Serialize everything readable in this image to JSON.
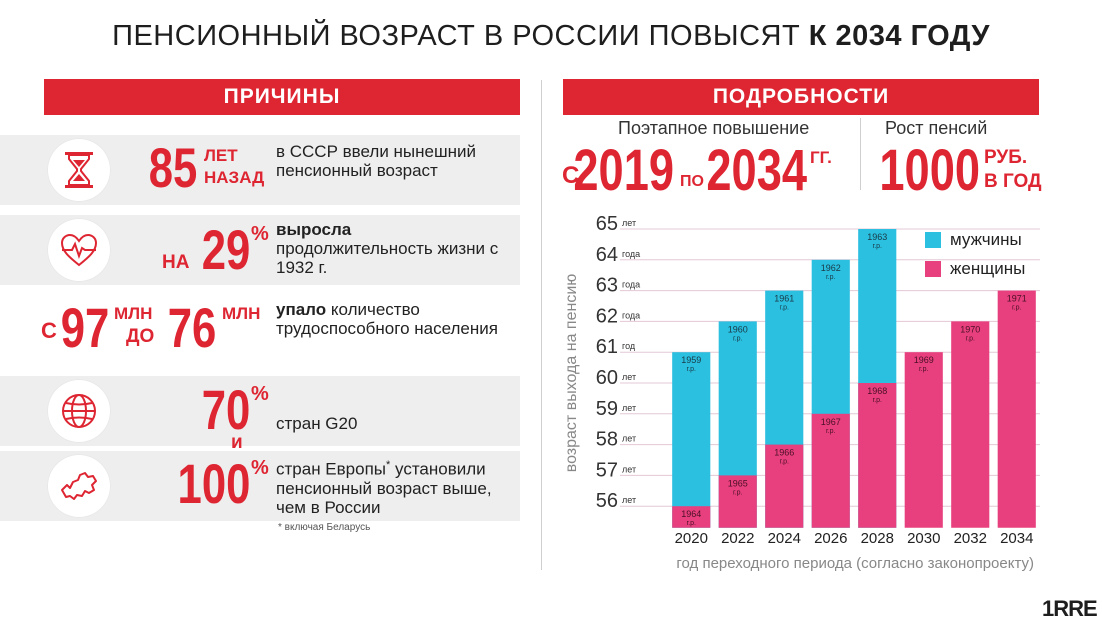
{
  "title": {
    "part1": "ПЕНСИОННЫЙ ВОЗРАСТ В РОССИИ ПОВЫСЯТ ",
    "part2": "К 2034 ГОДУ"
  },
  "left": {
    "banner": "ПРИЧИНЫ",
    "row1": {
      "num": "85",
      "unit1": "ЛЕТ",
      "unit2": "НАЗАД",
      "desc": "в СССР ввели нынешний пенсионный возраст"
    },
    "row2": {
      "prefix": "НА",
      "num": "29",
      "unit": "%",
      "desc_bold": "выросла",
      "desc": "продолжительность жизни с 1932 г."
    },
    "row3": {
      "from_c": "С",
      "from_num": "97",
      "from_unit": "МЛН",
      "to": "ДО",
      "to_num": "76",
      "to_unit": "МЛН",
      "desc_bold": "упало",
      "desc": " количество трудоспособного населения"
    },
    "row4": {
      "num": "70",
      "unit": "%",
      "desc": "стран G20"
    },
    "and": "и",
    "row5": {
      "num": "100",
      "unit": "%",
      "desc_a": "стран Европы",
      "star": "*",
      "desc_b": " установили пенсионный возраст выше, чем в России"
    },
    "footnote": "* включая Беларусь"
  },
  "right": {
    "banner": "ПОДРОБНОСТИ",
    "sub1": "Поэтапное повышение",
    "from": "С",
    "year_from": "2019",
    "to": "ПО",
    "year_to": "2034",
    "gg": "ГГ.",
    "sub2": "Рост пенсий",
    "amount": "1000",
    "rub": "РУБ.",
    "per_year": "В ГОД"
  },
  "icons": {
    "row1": "hourglass-icon",
    "row2": "heart-pulse-icon",
    "row4": "globe-icon",
    "row5": "europe-map-icon"
  },
  "colors": {
    "accent": "#de2532",
    "men": "#2bbfe0",
    "women": "#e8407e",
    "band": "#eeeeee"
  },
  "chart_data": {
    "type": "bar",
    "title": "",
    "xlabel": "год переходного периода (согласно законопроекту)",
    "ylabel": "возраст выхода на пенсию",
    "ylim": [
      55,
      65
    ],
    "y_ticks": [
      56,
      57,
      58,
      59,
      60,
      61,
      62,
      63,
      64,
      65
    ],
    "y_tick_units": [
      "лет",
      "лет",
      "лет",
      "лет",
      "лет",
      "год",
      "года",
      "года",
      "года",
      "лет"
    ],
    "categories": [
      "2020",
      "2022",
      "2024",
      "2026",
      "2028",
      "2030",
      "2032",
      "2034"
    ],
    "series": [
      {
        "name": "мужчины",
        "color": "#2bbfe0",
        "values": [
          61,
          62,
          63,
          64,
          65,
          null,
          null,
          null
        ],
        "labels": [
          "1959 г.р.",
          "1960 г.р.",
          "1961 г.р.",
          "1962 г.р.",
          "1963 г.р.",
          "",
          "",
          ""
        ]
      },
      {
        "name": "женщины",
        "color": "#e8407e",
        "values": [
          56,
          57,
          58,
          59,
          60,
          61,
          62,
          63
        ],
        "labels": [
          "1964 г.р.",
          "1965 г.р.",
          "1966 г.р.",
          "1967 г.р.",
          "1968 г.р.",
          "1969 г.р.",
          "1970 г.р.",
          "1971 г.р."
        ]
      }
    ],
    "legend_position": "top-right"
  },
  "logo": "1RRE"
}
